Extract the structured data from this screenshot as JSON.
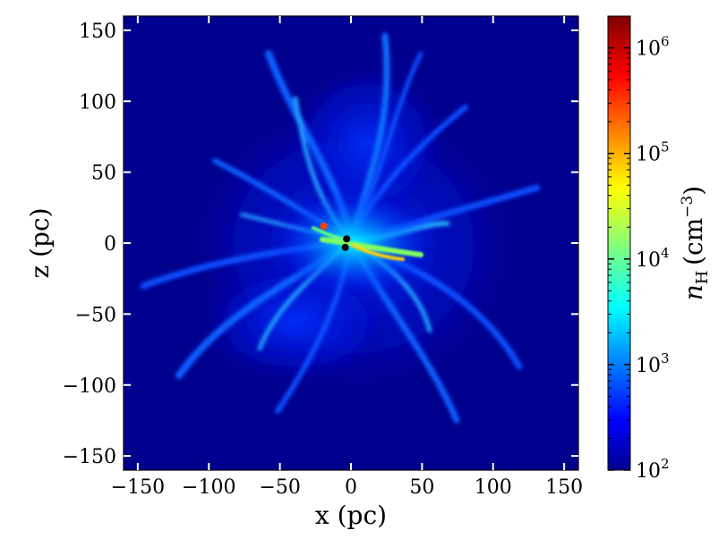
{
  "chart_data": {
    "type": "heatmap",
    "title": "",
    "xlabel": "x (pc)",
    "ylabel": "z (pc)",
    "xlim": [
      -160,
      160
    ],
    "ylim": [
      -160,
      160
    ],
    "xticks": [
      -150,
      -100,
      -50,
      0,
      50,
      100,
      150
    ],
    "yticks": [
      -150,
      -100,
      -50,
      0,
      50,
      100,
      150
    ],
    "xtick_labels": [
      "−150",
      "−100",
      "−50",
      "0",
      "50",
      "100",
      "150"
    ],
    "ytick_labels": [
      "−150",
      "−100",
      "−50",
      "0",
      "50",
      "100",
      "150"
    ],
    "colormap": "jet",
    "background_color": "#00008f",
    "colorbar": {
      "label_symbol": "n",
      "label_subscript": "H",
      "label_unit": "(cm",
      "label_unit_exp": "−3",
      "label_unit_close": ")",
      "scale": "log",
      "range": [
        100,
        2000000
      ],
      "ticks": [
        100,
        1000,
        10000,
        100000,
        1000000
      ],
      "tick_bases": [
        "10",
        "10",
        "10",
        "10",
        "10"
      ],
      "tick_exponents": [
        "2",
        "3",
        "4",
        "5",
        "6"
      ]
    },
    "markers": [
      {
        "x": -3,
        "z": 3,
        "color": "#000000"
      },
      {
        "x": -4,
        "z": -3,
        "color": "#000000"
      },
      {
        "x": -19,
        "z": 12,
        "color": "#ff4000"
      }
    ]
  }
}
